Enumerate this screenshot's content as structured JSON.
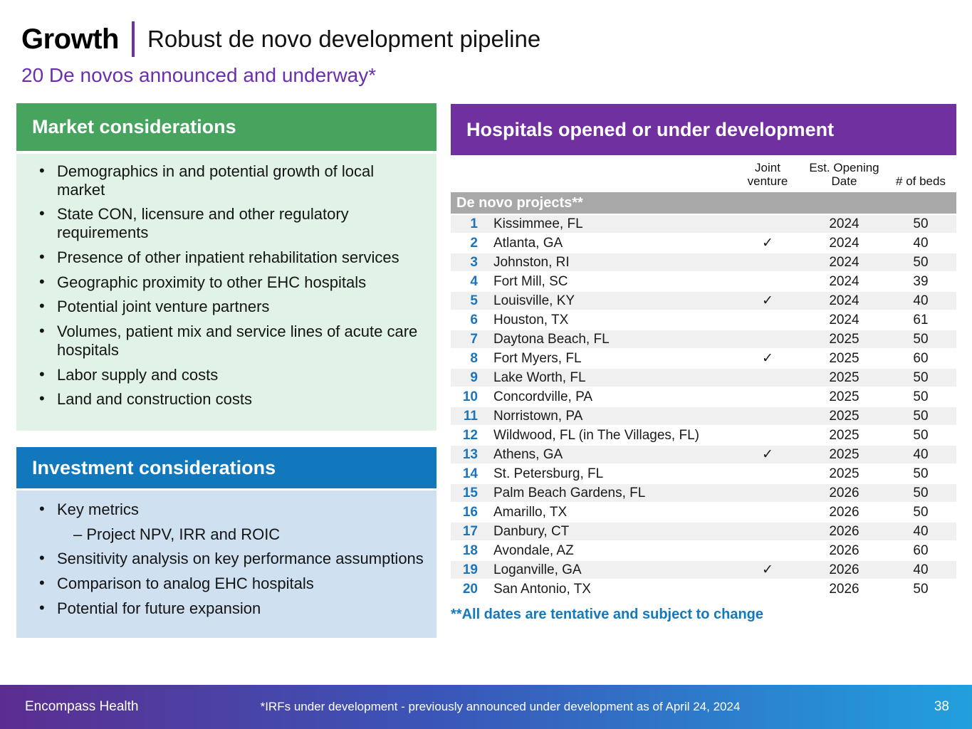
{
  "header": {
    "kicker": "Growth",
    "title": "Robust de novo development pipeline",
    "subtitle": "20 De novos announced and underway*"
  },
  "market": {
    "title": "Market considerations",
    "items": [
      "Demographics in and potential growth of local market",
      "State CON, licensure and other regulatory requirements",
      "Presence of other inpatient rehabilitation services",
      "Geographic proximity to other EHC hospitals",
      "Potential joint venture partners",
      "Volumes, patient mix and service lines of acute care hospitals",
      "Labor supply and costs",
      "Land and construction costs"
    ]
  },
  "investment": {
    "title": "Investment considerations",
    "items": [
      {
        "text": "Key metrics",
        "sub": [
          "– Project NPV, IRR and ROIC"
        ]
      },
      {
        "text": "Sensitivity analysis on key performance assumptions"
      },
      {
        "text": "Comparison to analog EHC hospitals"
      },
      {
        "text": "Potential for future expansion"
      }
    ]
  },
  "pipeline": {
    "title": "Hospitals opened or under development",
    "columns": {
      "joint_venture": "Joint\nventure",
      "opening_date": "Est. Opening\nDate",
      "beds": "# of beds"
    },
    "section_label": "De novo projects**",
    "check_glyph": "✓",
    "rows": [
      {
        "num": "1",
        "city": "Kissimmee, FL",
        "jv": false,
        "date": "2024",
        "beds": "50"
      },
      {
        "num": "2",
        "city": "Atlanta, GA",
        "jv": true,
        "date": "2024",
        "beds": "40"
      },
      {
        "num": "3",
        "city": "Johnston, RI",
        "jv": false,
        "date": "2024",
        "beds": "50"
      },
      {
        "num": "4",
        "city": "Fort Mill, SC",
        "jv": false,
        "date": "2024",
        "beds": "39"
      },
      {
        "num": "5",
        "city": "Louisville, KY",
        "jv": true,
        "date": "2024",
        "beds": "40"
      },
      {
        "num": "6",
        "city": "Houston, TX",
        "jv": false,
        "date": "2024",
        "beds": "61"
      },
      {
        "num": "7",
        "city": "Daytona Beach, FL",
        "jv": false,
        "date": "2025",
        "beds": "50"
      },
      {
        "num": "8",
        "city": "Fort Myers, FL",
        "jv": true,
        "date": "2025",
        "beds": "60"
      },
      {
        "num": "9",
        "city": "Lake Worth, FL",
        "jv": false,
        "date": "2025",
        "beds": "50"
      },
      {
        "num": "10",
        "city": "Concordville, PA",
        "jv": false,
        "date": "2025",
        "beds": "50"
      },
      {
        "num": "11",
        "city": "Norristown, PA",
        "jv": false,
        "date": "2025",
        "beds": "50"
      },
      {
        "num": "12",
        "city": "Wildwood, FL (in The Villages, FL)",
        "jv": false,
        "date": "2025",
        "beds": "50"
      },
      {
        "num": "13",
        "city": "Athens, GA",
        "jv": true,
        "date": "2025",
        "beds": "40"
      },
      {
        "num": "14",
        "city": "St. Petersburg, FL",
        "jv": false,
        "date": "2025",
        "beds": "50"
      },
      {
        "num": "15",
        "city": "Palm Beach Gardens, FL",
        "jv": false,
        "date": "2026",
        "beds": "50"
      },
      {
        "num": "16",
        "city": "Amarillo, TX",
        "jv": false,
        "date": "2026",
        "beds": "50"
      },
      {
        "num": "17",
        "city": "Danbury, CT",
        "jv": false,
        "date": "2026",
        "beds": "40"
      },
      {
        "num": "18",
        "city": "Avondale, AZ",
        "jv": false,
        "date": "2026",
        "beds": "60"
      },
      {
        "num": "19",
        "city": "Loganville, GA",
        "jv": true,
        "date": "2026",
        "beds": "40"
      },
      {
        "num": "20",
        "city": "San Antonio, TX",
        "jv": false,
        "date": "2026",
        "beds": "50"
      }
    ],
    "footnote": "**All dates are tentative and subject to change"
  },
  "footer": {
    "brand": "Encompass Health",
    "note": "*IRFs under development - previously announced under development as of April 24, 2024",
    "page": "38"
  },
  "colors": {
    "accent_purple": "#7030a0",
    "subtitle_purple": "#6a2fae",
    "green_header": "#47a45f",
    "green_body": "#e1f3e7",
    "blue_header": "#1178be",
    "blue_body": "#cfe1f1",
    "gray_band": "#a8a8a8",
    "row_alt": "#f0f0f0",
    "row_number_blue": "#1b75bc",
    "footnote_blue": "#1379be",
    "footer_gradient_start": "#5c2d91",
    "footer_gradient_end": "#21a0dc"
  }
}
